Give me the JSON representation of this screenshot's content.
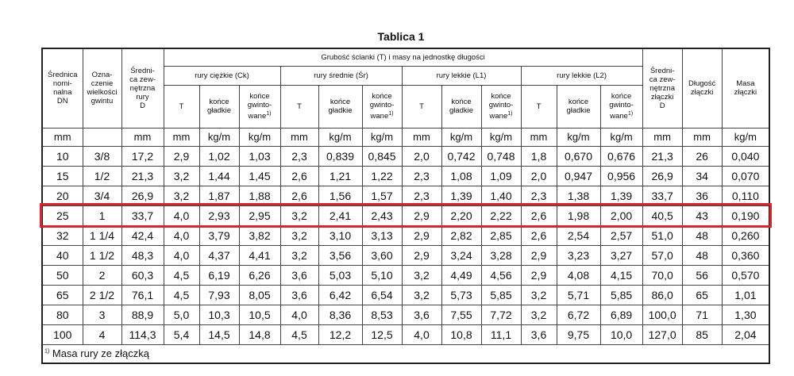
{
  "title": "Tablica 1",
  "table": {
    "head_left": [
      "Średnica\nnomi-\nnalna\nDN",
      "Ozna-\nczenie\nwielkości\ngwintu",
      "Średni-\nca zew-\nnętrzna\nrury\nD"
    ],
    "group_header": "Grubość ścianki (T) i masy na jednostkę długości",
    "groups": [
      "rury ciężkie (Ck)",
      "rury średnie (Śr)",
      "rury lekkie (L1)",
      "rury lekkie (L2)"
    ],
    "sub_headers": [
      {
        "text": "T"
      },
      {
        "text": "końce\ngładkie"
      },
      {
        "text": "końce\ngwinto-\nwane",
        "note": "1)"
      },
      {
        "text": "T"
      },
      {
        "text": "końce\ngładkie"
      },
      {
        "text": "końce\ngwinto-\nwane",
        "note": "1)"
      },
      {
        "text": "T"
      },
      {
        "text": "końce\ngładkie"
      },
      {
        "text": "końce\ngwinto-\nwane",
        "note": "1)"
      },
      {
        "text": "T"
      },
      {
        "text": "końce\ngładkie"
      },
      {
        "text": "końce\ngwinto-\nwane",
        "note": "1)"
      }
    ],
    "head_right": [
      "Średni-\nca zew-\nnętrzna\nzłączki\nD",
      "Długość\nzłączki",
      "Masa\nzłączki"
    ],
    "units": [
      "mm",
      null,
      "mm",
      "mm",
      "kg/m",
      "kg/m",
      "mm",
      "kg/m",
      "kg/m",
      "mm",
      "kg/m",
      "kg/m",
      "mm",
      "kg/m",
      "kg/m",
      "mm",
      "mm",
      "kg/m"
    ],
    "rows": [
      [
        "10",
        "3/8",
        "17,2",
        "2,9",
        "1,02",
        "1,03",
        "2,3",
        "0,839",
        "0,845",
        "2,0",
        "0,742",
        "0,748",
        "1,8",
        "0,670",
        "0,676",
        "21,3",
        "26",
        "0,040"
      ],
      [
        "15",
        "1/2",
        "21,3",
        "3,2",
        "1,44",
        "1,45",
        "2,6",
        "1,21",
        "1,22",
        "2,3",
        "1,08",
        "1,09",
        "2,0",
        "0,947",
        "0,956",
        "26,9",
        "34",
        "0,070"
      ],
      [
        "20",
        "3/4",
        "26,9",
        "3,2",
        "1,87",
        "1,88",
        "2,6",
        "1,56",
        "1,57",
        "2,3",
        "1,39",
        "1,40",
        "2,3",
        "1,38",
        "1,39",
        "33,7",
        "36",
        "0,110"
      ],
      [
        "25",
        "1",
        "33,7",
        "4,0",
        "2,93",
        "2,95",
        "3,2",
        "2,41",
        "2,43",
        "2,9",
        "2,20",
        "2,22",
        "2,6",
        "1,98",
        "2,00",
        "40,5",
        "43",
        "0,190"
      ],
      [
        "32",
        "1 1/4",
        "42,4",
        "4,0",
        "3,79",
        "3,82",
        "3,2",
        "3,10",
        "3,13",
        "2,9",
        "2,82",
        "2,85",
        "2,6",
        "2,54",
        "2,57",
        "51,0",
        "48",
        "0,260"
      ],
      [
        "40",
        "1 1/2",
        "48,3",
        "4,0",
        "4,37",
        "4,41",
        "3,2",
        "3,56",
        "3,60",
        "2,9",
        "3,24",
        "3,28",
        "2,9",
        "3,23",
        "3,27",
        "57,0",
        "48",
        "0,360"
      ],
      [
        "50",
        "2",
        "60,3",
        "4,5",
        "6,19",
        "6,26",
        "3,6",
        "5,03",
        "5,10",
        "3,2",
        "4,49",
        "4,56",
        "2,9",
        "4,08",
        "4,15",
        "70,0",
        "56",
        "0,570"
      ],
      [
        "65",
        "2 1/2",
        "76,1",
        "4,5",
        "7,93",
        "8,05",
        "3,6",
        "6,42",
        "6,54",
        "3,2",
        "5,73",
        "5,85",
        "3,2",
        "5,71",
        "5,85",
        "86,0",
        "65",
        "1,01"
      ],
      [
        "80",
        "3",
        "88,9",
        "5,0",
        "10,3",
        "10,5",
        "4,0",
        "8,36",
        "8,53",
        "3,6",
        "7,55",
        "7,72",
        "3,2",
        "6,72",
        "6,89",
        "100,0",
        "71",
        "1,30"
      ],
      [
        "100",
        "4",
        "114,3",
        "5,4",
        "14,5",
        "14,8",
        "4,5",
        "12,2",
        "12,5",
        "4,0",
        "10,8",
        "11,1",
        "3,6",
        "9,75",
        "10,0",
        "127,0",
        "85",
        "2,04"
      ]
    ],
    "highlighted_row": 3
  },
  "footnote": {
    "mark": "1)",
    "text": "Masa rury ze złączką"
  }
}
